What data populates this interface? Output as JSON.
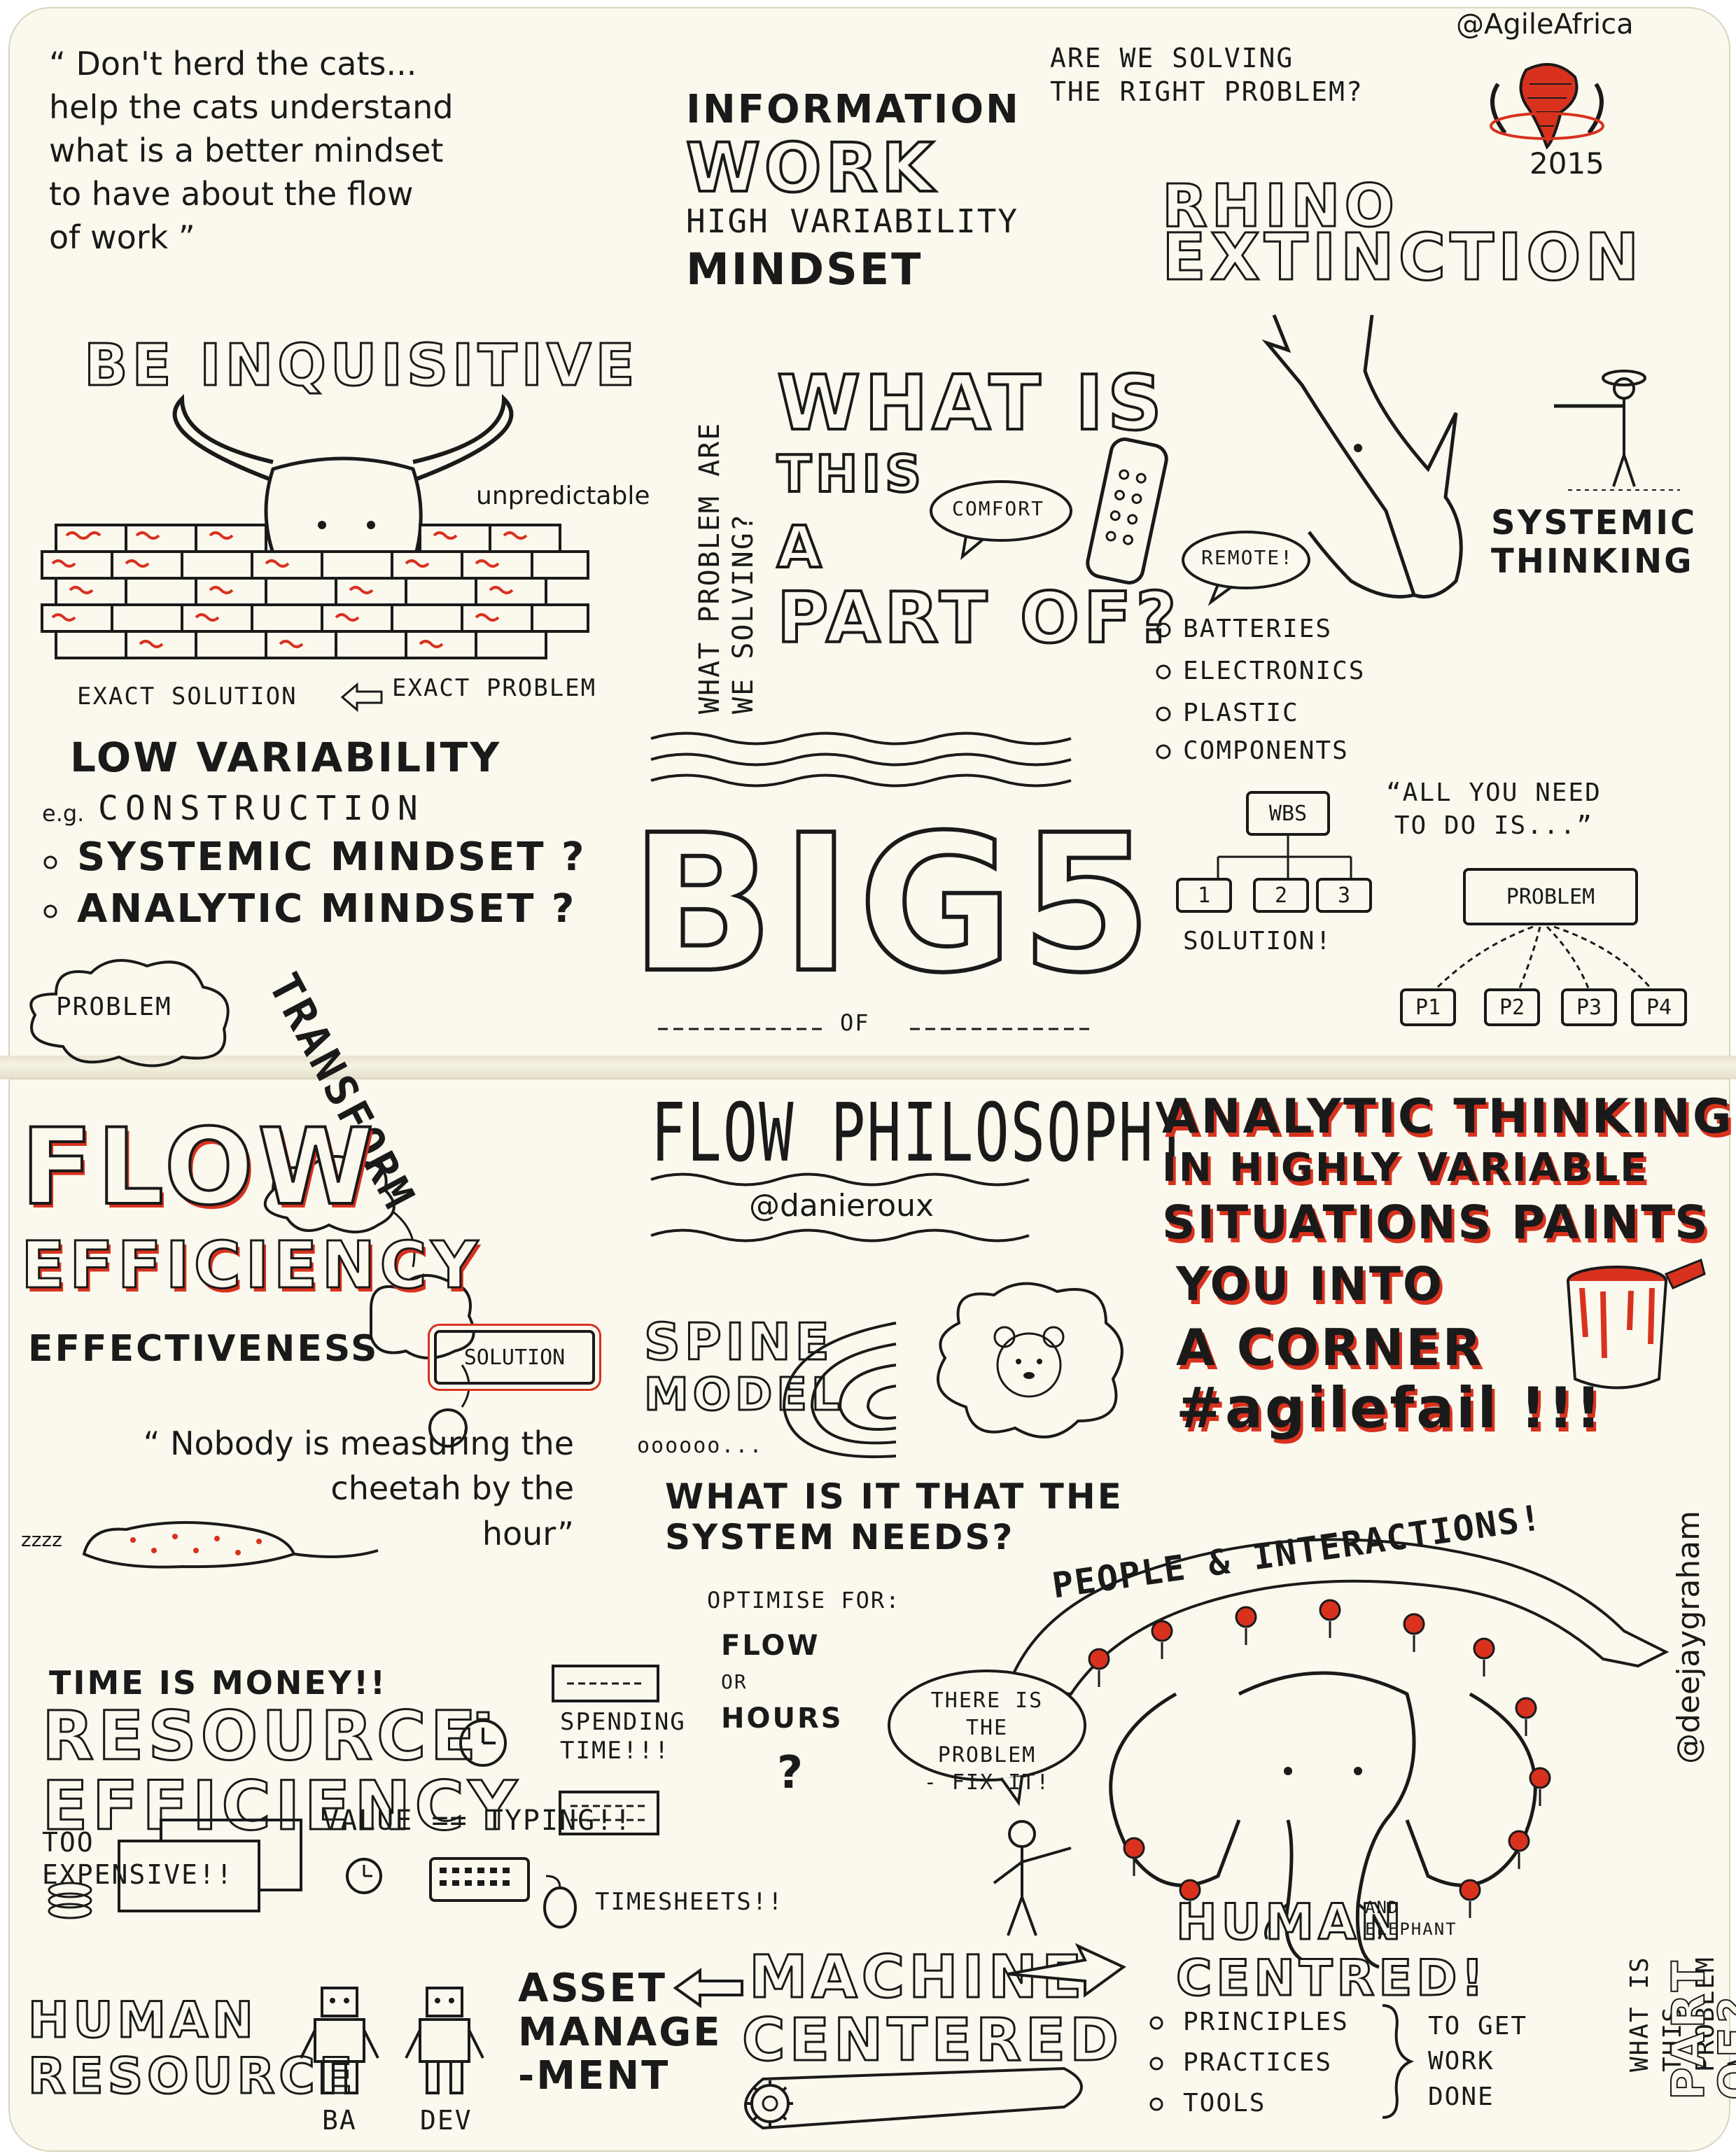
{
  "quote_cats": "“ Don't herd the cats...\nhelp the cats understand\nwhat is a better mindset\nto have about the flow\nof work ”",
  "info_work": {
    "line1": "INFORMATION",
    "line2": "WORK",
    "line3": "HIGH VARIABILITY",
    "line4": "MINDSET"
  },
  "right_problem": "ARE WE SOLVING\nTHE RIGHT PROBLEM?",
  "agile_africa": {
    "handle": "@AgileAfrica",
    "year": "2015"
  },
  "rhino": {
    "title1": "RHINO",
    "title2": "EXTINCTION",
    "systemic": "SYSTEMIC\nTHINKING"
  },
  "be_inquisitive": "BE INQUISITIVE",
  "unpredictable": "unpredictable",
  "what_problem_vertical": "WHAT PROBLEM ARE\nWE SOLVING?",
  "what_is_this": {
    "line1": "WHAT IS",
    "line2": "THIS",
    "line3": "A",
    "line4": "PART OF?"
  },
  "comfort": "COMFORT",
  "remote": "REMOTE!",
  "remote_parts": [
    "BATTERIES",
    "ELECTRONICS",
    "PLASTIC",
    "COMPONENTS"
  ],
  "exact": {
    "solution": "EXACT SOLUTION",
    "problem": "EXACT PROBLEM"
  },
  "low_variability": "LOW VARIABILITY",
  "construction": {
    "prefix": "e.g.",
    "word": "CONSTRUCTION"
  },
  "mindsets": [
    "SYSTEMIC MINDSET ?",
    "ANALYTIC MINDSET ?"
  ],
  "big5": {
    "title": "BIG5",
    "of": "OF"
  },
  "wbs": {
    "label": "WBS",
    "children": [
      "1",
      "2",
      "3"
    ],
    "solution": "SOLUTION!"
  },
  "all_you_need": "“ALL YOU NEED\nTO DO IS...”",
  "problem_tree": {
    "root": "PROBLEM",
    "children": [
      "P1",
      "P2",
      "P3",
      "P4"
    ]
  },
  "problem_cloud": "PROBLEM",
  "transform": "TRANSFORM",
  "flow_efficiency": {
    "flow": "FLOW",
    "efficiency": "EFFICIENCY",
    "effectiveness": "EFFECTIVENESS",
    "solution": "SOLUTION"
  },
  "flow_philosophy": {
    "title": "FLOW PHILOSOPHY",
    "handle": "@danieroux"
  },
  "analytic_thinking": {
    "l1": "ANALYTIC THINKING",
    "l2": "IN HIGHLY VARIABLE",
    "l3": "SITUATIONS PAINTS",
    "l4": "YOU INTO",
    "l5": "A CORNER",
    "l6": "#agilefail !!!"
  },
  "cheetah_quote": "“ Nobody is measuring the\ncheetah by the\nhour”",
  "zzz": "zzzz",
  "spine_model": {
    "spine": "SPINE",
    "model": "MODEL",
    "dots": "oooooo..."
  },
  "system_needs": "WHAT IS IT THAT THE\nSYSTEM NEEDS?",
  "optimise": {
    "label": "OPTIMISE FOR:",
    "flow": "FLOW",
    "or": "OR",
    "hours": "HOURS",
    "q": "?"
  },
  "people_interactions": "PEOPLE & INTERACTIONS!",
  "fix_it": "THERE IS\nTHE PROBLEM\n- FIX IT!",
  "time_is_money": "TIME IS MONEY!!",
  "resource_efficiency": {
    "l1": "RESOURCE",
    "l2": "EFFICIENCY"
  },
  "spending_time": "SPENDING\nTIME!!!",
  "too_expensive": "TOO\nEXPENSIVE!!",
  "value_typing": "VALUE == TYPING!!",
  "timesheets": "TIMESHEETS!!",
  "human_resource": {
    "l1": "HUMAN",
    "l2": "RESOURCE"
  },
  "robots": [
    "BA",
    "DEV"
  ],
  "asset_mgmt": "ASSET\nMANAGE\n-MENT",
  "machine_centered": {
    "l1": "MACHINE",
    "l2": "CENTERED"
  },
  "human_centred": {
    "l1": "HUMAN",
    "and": "AND\nELEPHANT",
    "l2": "CENTRED!"
  },
  "ppt": [
    "PRINCIPLES",
    "PRACTICES",
    "TOOLS"
  ],
  "to_get_work_done": "TO GET\nWORK\nDONE",
  "deejay": "@deejaygraham",
  "what_is_this_part": {
    "small": "WHAT IS THIS\nPROBLEM A",
    "big": "PART OF?"
  },
  "colors": {
    "paper": "#fbf9ee",
    "ink": "#1a1a1a",
    "accent": "#d8321f"
  }
}
